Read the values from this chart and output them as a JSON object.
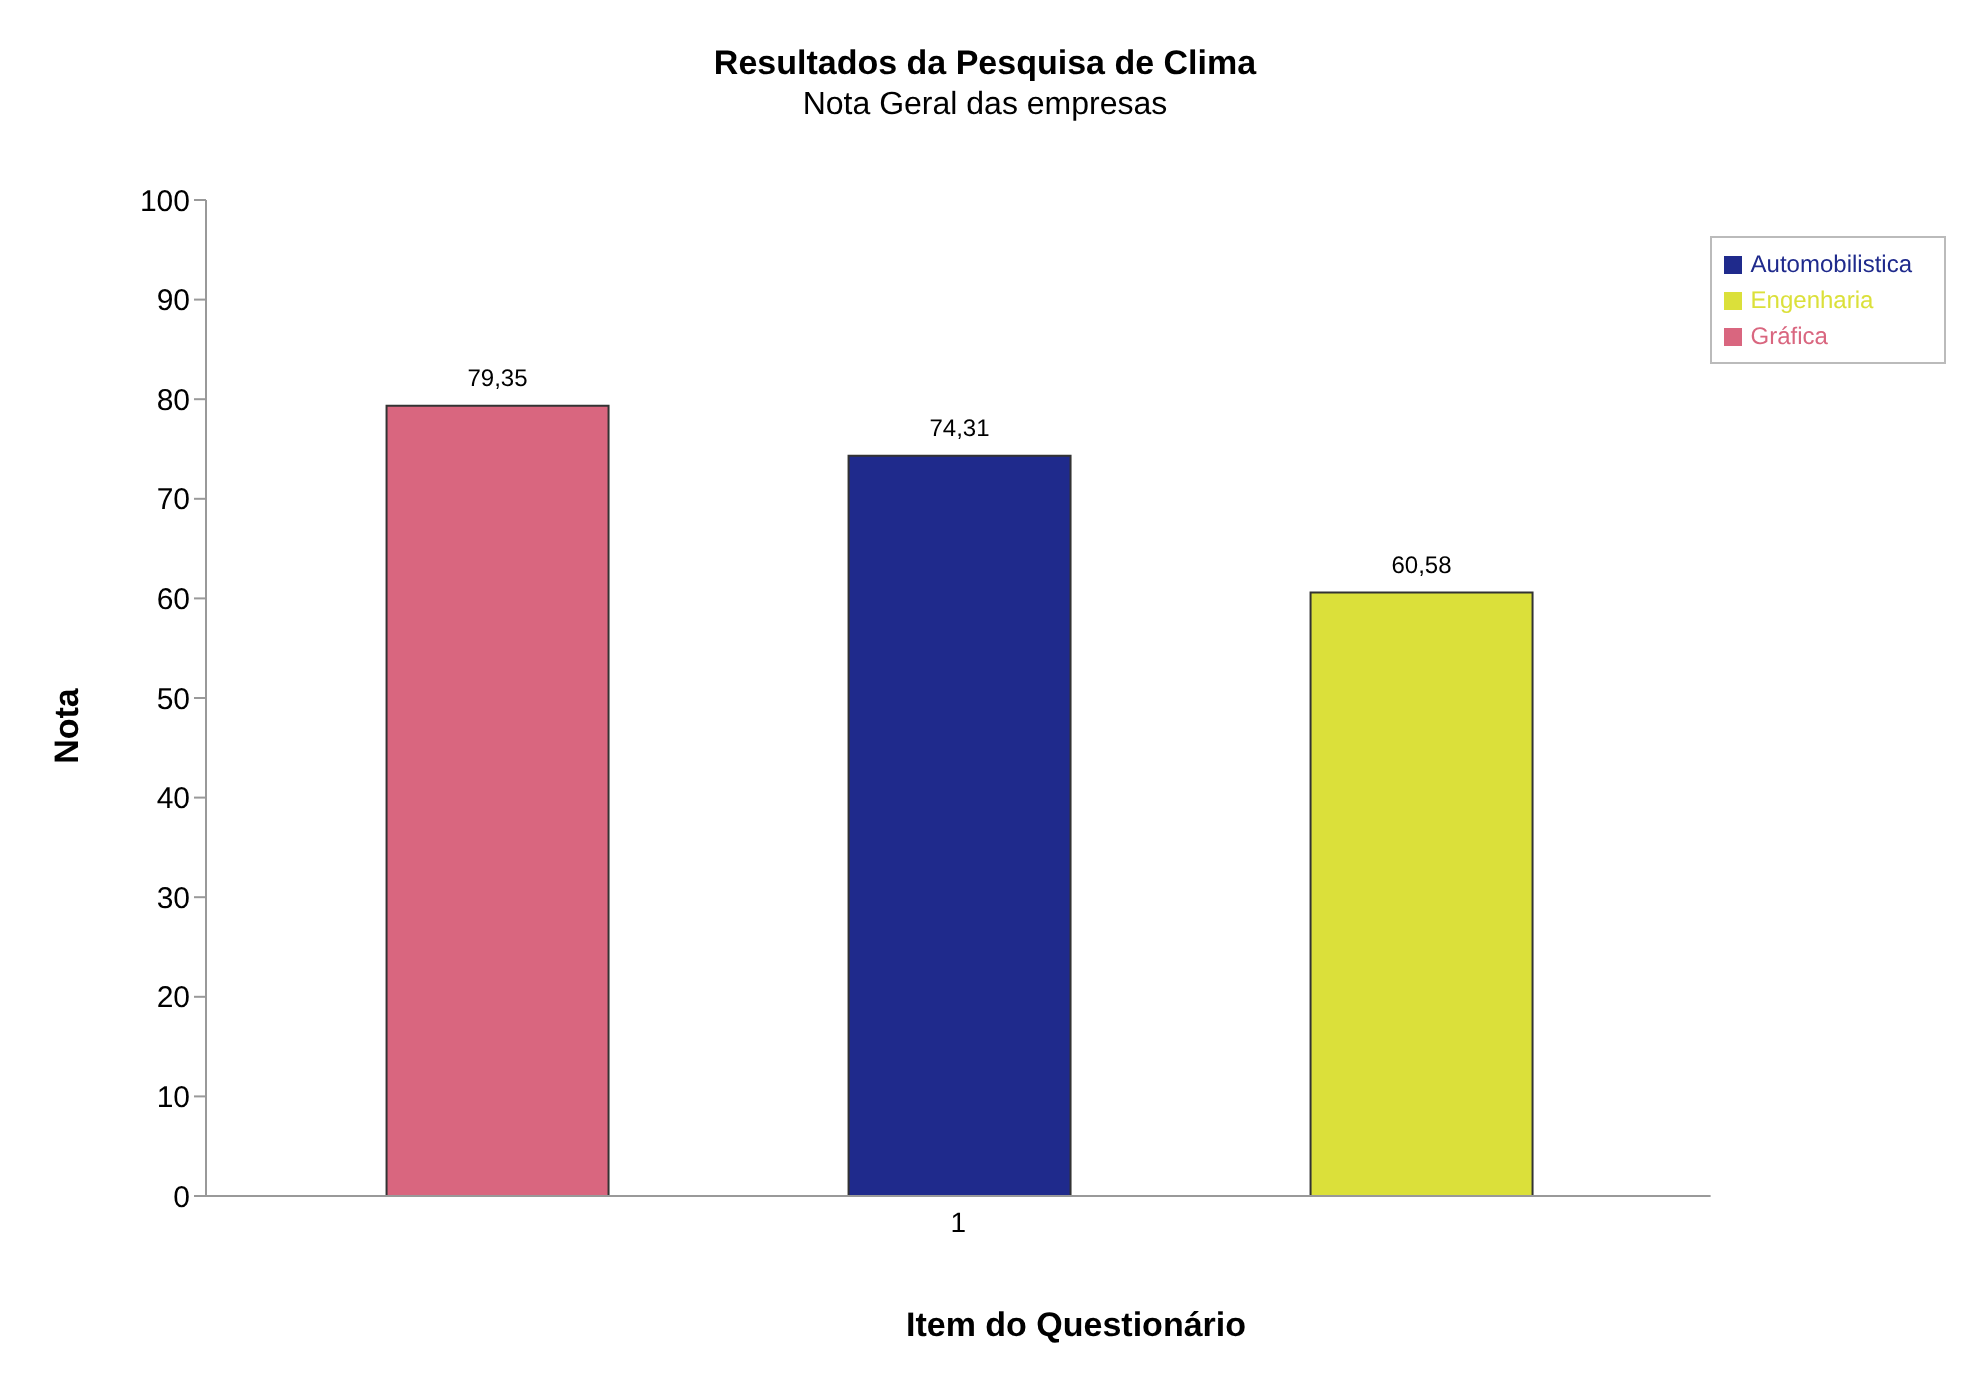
{
  "chart_data": {
    "type": "bar",
    "title": "Resultados da Pesquisa de Clima",
    "subtitle": "Nota Geral das empresas",
    "xlabel": "Item do Questionário",
    "ylabel": "Nota",
    "categories": [
      "1"
    ],
    "series": [
      {
        "name": "Gráfica",
        "color": "#d9667f",
        "values": [
          79.35
        ],
        "value_labels": [
          "79,35"
        ]
      },
      {
        "name": "Automobilistica",
        "color": "#1f2a8c",
        "values": [
          74.31
        ],
        "value_labels": [
          "74,31"
        ]
      },
      {
        "name": "Engenharia",
        "color": "#dbe03a",
        "values": [
          60.58
        ],
        "value_labels": [
          "60,58"
        ]
      }
    ],
    "ylim": [
      0,
      100
    ],
    "yticks": [
      0,
      10,
      20,
      30,
      40,
      50,
      60,
      70,
      80,
      90,
      100
    ],
    "grid": false,
    "legend": "top right"
  }
}
